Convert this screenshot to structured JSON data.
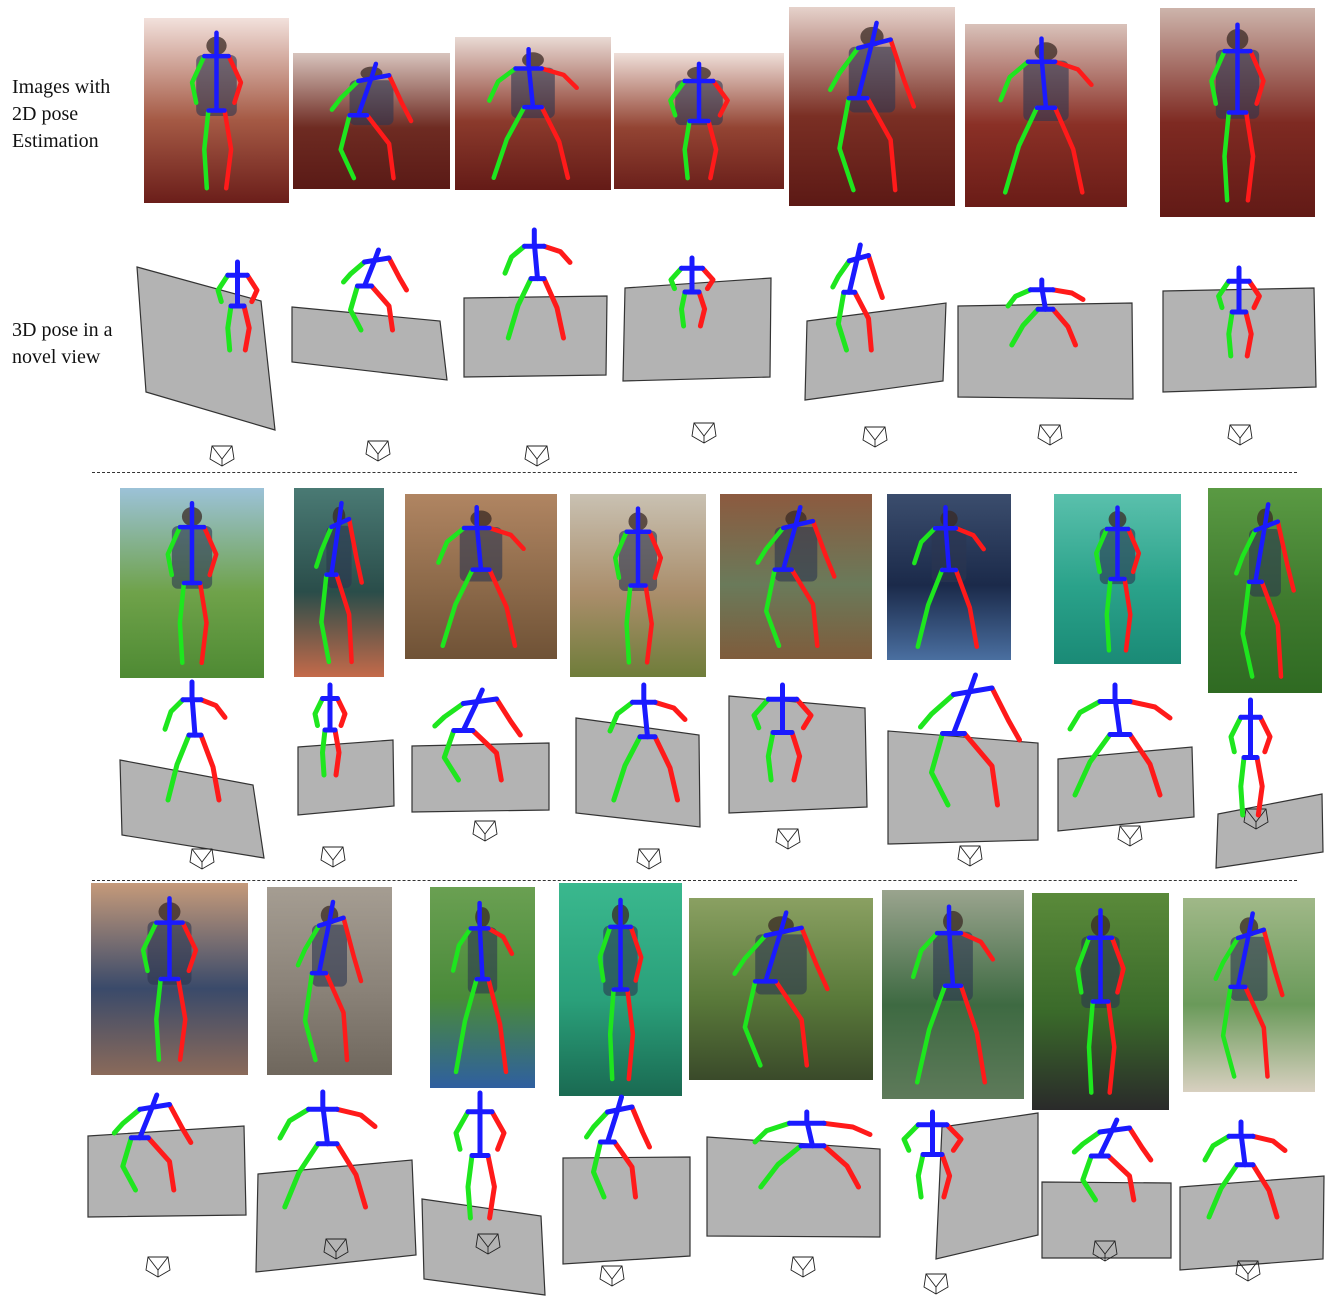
{
  "row_labels": {
    "images_2d": "Images with\n2D pose\nEstimation",
    "pose_3d": "3D pose in a\nnovel view"
  },
  "colors": {
    "left_limb": "#1ee61e",
    "right_limb": "#ff1a1a",
    "torso": "#1a1aff",
    "ground_plane": "#b3b3b3",
    "plane_edge": "#333333",
    "camera": "#222222"
  },
  "sections": [
    {
      "name": "human36m-lab",
      "images": [
        {
          "scene": "standing-lab",
          "bg": [
            "#a55a45",
            "#f2e1dc",
            "#6b1e1a"
          ]
        },
        {
          "scene": "sitting-chair",
          "bg": [
            "#6e2b22",
            "#d8c4bd",
            "#5a1a16"
          ]
        },
        {
          "scene": "sitting-leg-up",
          "bg": [
            "#8b3a2c",
            "#e9dad4",
            "#641b17"
          ]
        },
        {
          "scene": "bending-over",
          "bg": [
            "#934433",
            "#efdfd9",
            "#6b201b"
          ]
        },
        {
          "scene": "standing-back",
          "bg": [
            "#7a2f24",
            "#e6d2cb",
            "#5c1915"
          ]
        },
        {
          "scene": "sitting-floor-crossed",
          "bg": [
            "#8a3026",
            "#d9c2ba",
            "#6a1c17"
          ]
        },
        {
          "scene": "sitting-floor-close",
          "bg": [
            "#7e2a22",
            "#cdb4ab",
            "#621a16"
          ]
        }
      ]
    },
    {
      "name": "sports-a",
      "images": [
        {
          "scene": "softball-fielder",
          "bg": [
            "#6fa24a",
            "#9cc2d8",
            "#4e8a33"
          ]
        },
        {
          "scene": "tennis-serve",
          "bg": [
            "#2a4d4a",
            "#4a7a74",
            "#c46a4a"
          ]
        },
        {
          "scene": "baseball-crouch",
          "bg": [
            "#8d6a4a",
            "#b08562",
            "#6f5236"
          ]
        },
        {
          "scene": "soccer-kick",
          "bg": [
            "#a98d6a",
            "#c9c1b2",
            "#6f7d3a"
          ]
        },
        {
          "scene": "baseball-pitcher",
          "bg": [
            "#6a7a5a",
            "#8c5a3f",
            "#7f5c3c"
          ]
        },
        {
          "scene": "tennis-forehand",
          "bg": [
            "#1b2a4a",
            "#3b4d6d",
            "#4a6fa0"
          ]
        },
        {
          "scene": "badminton",
          "bg": [
            "#2aa28a",
            "#5ac0ac",
            "#1a8a76"
          ]
        },
        {
          "scene": "soccer-dribble",
          "bg": [
            "#3f7a2e",
            "#5a9a43",
            "#2f6a22"
          ]
        }
      ]
    },
    {
      "name": "sports-b",
      "images": [
        {
          "scene": "tennis-ready",
          "bg": [
            "#3a4a6a",
            "#c59a7a",
            "#8a6a5a"
          ]
        },
        {
          "scene": "volleyball",
          "bg": [
            "#8a8278",
            "#a59d92",
            "#6f675d"
          ]
        },
        {
          "scene": "baseball-announcer",
          "bg": [
            "#4a8a3a",
            "#6aa052",
            "#2f5fa0"
          ]
        },
        {
          "scene": "seated-man",
          "bg": [
            "#2aa07a",
            "#3ab88e",
            "#1a6a52"
          ]
        },
        {
          "scene": "cyclist",
          "bg": [
            "#5a7a3a",
            "#8aa062",
            "#3a4a2a"
          ]
        },
        {
          "scene": "tennis-walk",
          "bg": [
            "#3e6a42",
            "#9aa48e",
            "#5e7a5a"
          ]
        },
        {
          "scene": "soccer-run",
          "bg": [
            "#3a6a2a",
            "#5a8a3a",
            "#2a2a2a"
          ]
        },
        {
          "scene": "tennis-lunge",
          "bg": [
            "#6a9a5a",
            "#a0b888",
            "#d8d0c0"
          ]
        }
      ]
    }
  ]
}
